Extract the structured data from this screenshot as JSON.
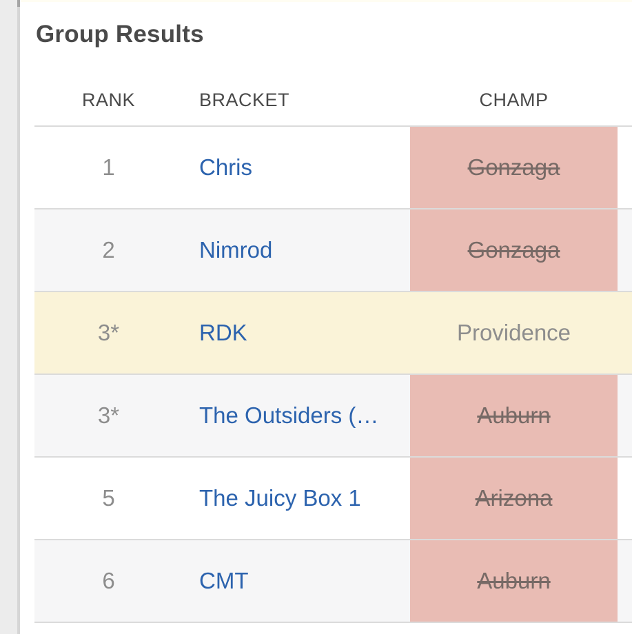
{
  "page": {
    "title": "Group Results"
  },
  "table": {
    "columns": {
      "rank_label": "RANK",
      "bracket_label": "BRACKET",
      "champ_label": "CHAMP"
    },
    "rows": [
      {
        "rank": "1",
        "bracket": "Chris",
        "champ": "Gonzaga",
        "champ_eliminated": true,
        "highlighted": false
      },
      {
        "rank": "2",
        "bracket": "Nimrod",
        "champ": "Gonzaga",
        "champ_eliminated": true,
        "highlighted": false
      },
      {
        "rank": "3*",
        "bracket": "RDK",
        "champ": "Providence",
        "champ_eliminated": false,
        "highlighted": true
      },
      {
        "rank": "3*",
        "bracket": "The Outsiders (…",
        "champ": "Auburn",
        "champ_eliminated": true,
        "highlighted": false
      },
      {
        "rank": "5",
        "bracket": "The Juicy Box 1",
        "champ": "Arizona",
        "champ_eliminated": true,
        "highlighted": false
      },
      {
        "rank": "6",
        "bracket": "CMT",
        "champ": "Auburn",
        "champ_eliminated": true,
        "highlighted": false
      }
    ]
  },
  "colors": {
    "eliminated_bg": "#e9bcb4",
    "highlight_bg": "#faf3d8",
    "row_alt_bg": "#f6f6f7",
    "link": "#2c63ae",
    "muted_text": "#8d8d8d",
    "heading_text": "#4a4a4a",
    "separator": "#dbdbdb",
    "strike_text": "#776a66"
  }
}
